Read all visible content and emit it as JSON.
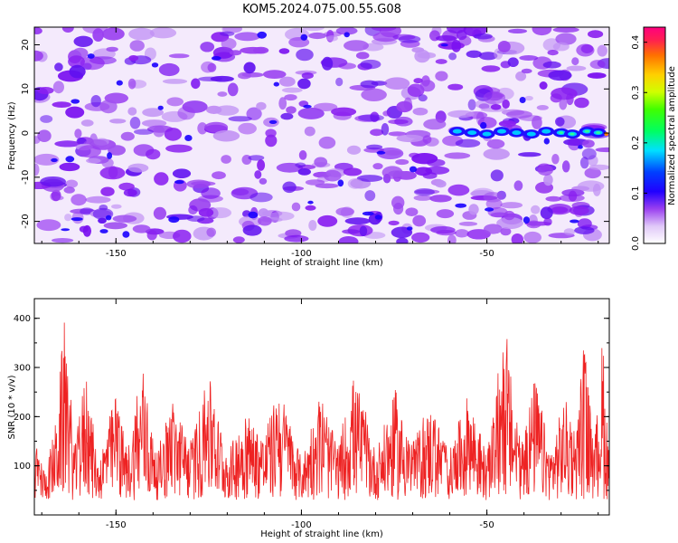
{
  "title": "KOM5.2024.075.00.55.G08",
  "chart_data": [
    {
      "type": "heatmap",
      "xlabel": "Height of straight line (km)",
      "ylabel": "Frequency (Hz)",
      "xlim": [
        -172,
        -17
      ],
      "ylim": [
        -25,
        24
      ],
      "xticks": [
        -150,
        -100,
        -50
      ],
      "yticks": [
        20,
        10,
        0,
        -10,
        -20
      ],
      "colorbar": {
        "label": "Normalized spectral amplitude",
        "range": [
          0.0,
          0.43
        ],
        "ticks": [
          "0.0",
          "0.1",
          "0.2",
          "0.3",
          "0.4"
        ],
        "colors": [
          "#ffffff",
          "#c8a0f0",
          "#7a00ff",
          "#2a00ff",
          "#0040ff",
          "#00c8ff",
          "#00ff80",
          "#40ff00",
          "#c0ff00",
          "#ffd000",
          "#ff8000",
          "#ff2060",
          "#ff0080"
        ]
      },
      "features": [
        {
          "description": "enhanced signal band near 0 Hz",
          "x_range": [
            -60,
            -17
          ],
          "y": 0
        }
      ],
      "colors": {
        "background": "#ffffff",
        "dominant": "#8a10f0"
      }
    },
    {
      "type": "line",
      "xlabel": "Height of straight line (km)",
      "ylabel": "SNR (10 * v/v)",
      "xlim": [
        -172,
        -17
      ],
      "ylim": [
        0,
        440
      ],
      "xticks": [
        -150,
        -100,
        -50
      ],
      "yticks": [
        100,
        200,
        300,
        400
      ],
      "series": [
        {
          "color": "#ee2222",
          "points": [
            [
              -172,
              140
            ],
            [
              -169,
              70
            ],
            [
              -166,
              200
            ],
            [
              -164,
              435
            ],
            [
              -161,
              130
            ],
            [
              -158,
              330
            ],
            [
              -155,
              90
            ],
            [
              -150,
              260
            ],
            [
              -147,
              120
            ],
            [
              -143,
              300
            ],
            [
              -139,
              110
            ],
            [
              -135,
              250
            ],
            [
              -130,
              140
            ],
            [
              -125,
              300
            ],
            [
              -120,
              110
            ],
            [
              -115,
              220
            ],
            [
              -110,
              150
            ],
            [
              -106,
              280
            ],
            [
              -100,
              100
            ],
            [
              -95,
              240
            ],
            [
              -90,
              130
            ],
            [
              -86,
              300
            ],
            [
              -80,
              120
            ],
            [
              -75,
              250
            ],
            [
              -70,
              140
            ],
            [
              -65,
              230
            ],
            [
              -60,
              120
            ],
            [
              -55,
              260
            ],
            [
              -50,
              110
            ],
            [
              -45,
              390
            ],
            [
              -41,
              140
            ],
            [
              -37,
              300
            ],
            [
              -33,
              120
            ],
            [
              -29,
              250
            ],
            [
              -26,
              150
            ],
            [
              -24,
              400
            ],
            [
              -21,
              130
            ],
            [
              -19,
              380
            ],
            [
              -17,
              130
            ]
          ]
        }
      ]
    }
  ]
}
